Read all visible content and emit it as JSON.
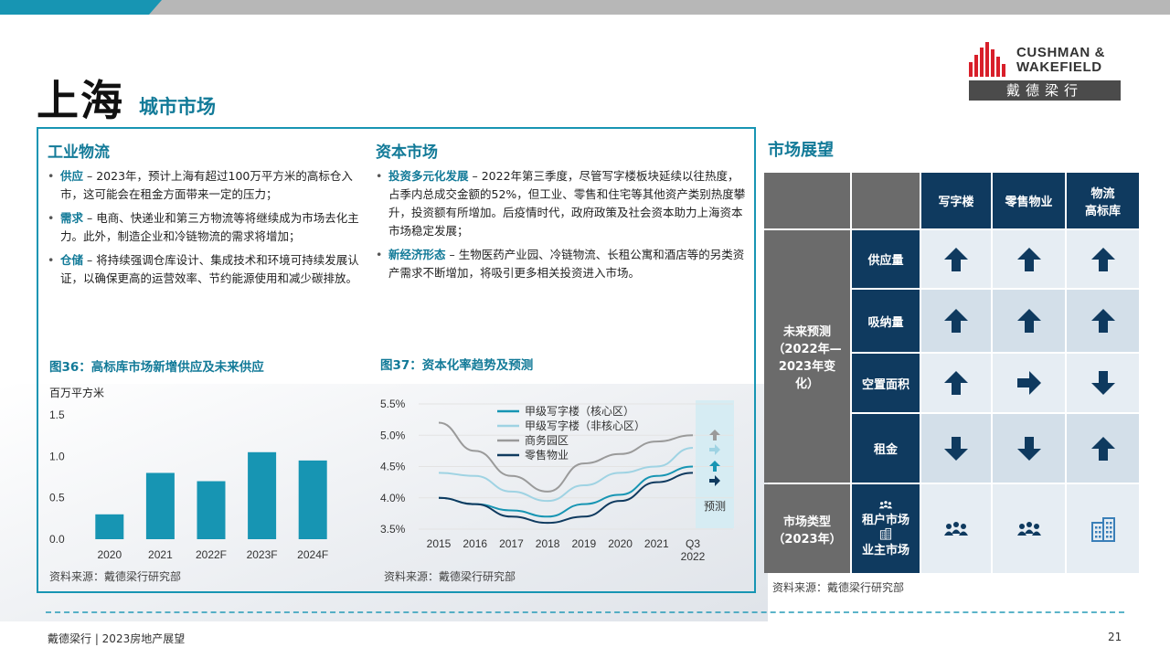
{
  "title": {
    "main": "上海",
    "sub": "城市市场"
  },
  "logo": {
    "line1": "CUSHMAN &",
    "line2": "WAKEFIELD",
    "chinese": "戴德梁行"
  },
  "industrial": {
    "heading": "工业物流",
    "items": [
      {
        "kw": "供应",
        "text": " – 2023年，预计上海有超过100万平方米的高标仓入市，这可能会在租金方面带来一定的压力；"
      },
      {
        "kw": "需求",
        "text": " – 电商、快递业和第三方物流等将继续成为市场去化主力。此外，制造企业和冷链物流的需求将增加；"
      },
      {
        "kw": "仓储",
        "text": " – 将持续强调仓库设计、集成技术和环境可持续发展认证，以确保更高的运营效率、节约能源使用和减少碳排放。"
      }
    ]
  },
  "capital": {
    "heading": "资本市场",
    "items": [
      {
        "kw": "投资多元化发展",
        "text": " – 2022年第三季度，尽管写字楼板块延续以往热度，占季内总成交金额的52%，但工业、零售和住宅等其他资产类别热度攀升，投资额有所增加。后疫情时代，政府政策及社会资本助力上海资本市场稳定发展；"
      },
      {
        "kw": "新经济形态",
        "text": " – 生物医药产业园、冷链物流、长租公寓和酒店等的另类资产需求不断增加，将吸引更多相关投资进入市场。"
      }
    ]
  },
  "fig36": {
    "title": "图36：高标库市场新增供应及未来供应",
    "unit": "百万平方米",
    "source": "资料来源：戴德梁行研究部"
  },
  "fig37": {
    "title": "图37：资本化率趋势及预测",
    "source": "资料来源：戴德梁行研究部",
    "forecast_label": "预测"
  },
  "chart_data": [
    {
      "type": "bar",
      "title": "图36：高标库市场新增供应及未来供应",
      "ylabel": "百万平方米",
      "categories": [
        "2020",
        "2021",
        "2022F",
        "2023F",
        "2024F"
      ],
      "values": [
        0.3,
        0.8,
        0.7,
        1.05,
        0.95
      ],
      "ylim": [
        0,
        1.5
      ],
      "yticks": [
        "0.0",
        "0.5",
        "1.0",
        "1.5"
      ],
      "color": "#1795b3"
    },
    {
      "type": "line",
      "title": "图37：资本化率趋势及预测",
      "x_labels": [
        "2015",
        "2016",
        "2017",
        "2018",
        "2019",
        "2020",
        "2021",
        "Q3\n2022"
      ],
      "x": [
        2015,
        2016,
        2017,
        2018,
        2019,
        2020,
        2021,
        2022
      ],
      "ylim": [
        3.5,
        5.5
      ],
      "yticks": [
        "3.5%",
        "4.0%",
        "4.5%",
        "5.0%",
        "5.5%"
      ],
      "legend_position": "top-left",
      "series": [
        {
          "name": "甲级写字楼（核心区）",
          "color": "#1795b3",
          "values": [
            4.0,
            3.9,
            3.8,
            3.7,
            3.9,
            4.05,
            4.35,
            4.5
          ]
        },
        {
          "name": "甲级写字楼（非核心区）",
          "color": "#9fd3e3",
          "values": [
            4.4,
            4.35,
            4.1,
            3.95,
            4.2,
            4.4,
            4.5,
            4.8
          ]
        },
        {
          "name": "商务园区",
          "color": "#9a9a9a",
          "values": [
            5.2,
            4.75,
            4.35,
            4.1,
            4.55,
            4.7,
            4.9,
            5.0
          ]
        },
        {
          "name": "零售物业",
          "color": "#0f3a5f",
          "values": [
            4.0,
            3.9,
            3.7,
            3.6,
            3.7,
            3.95,
            4.25,
            4.4
          ]
        }
      ],
      "forecast_arrows": [
        {
          "series": "商务园区",
          "direction": "up"
        },
        {
          "series": "甲级写字楼（非核心区）",
          "direction": "right"
        },
        {
          "series": "甲级写字楼（核心区）",
          "direction": "up"
        },
        {
          "series": "零售物业",
          "direction": "right"
        }
      ]
    }
  ],
  "outlook": {
    "title": "市场展望",
    "columns": [
      "写字楼",
      "零售物业",
      "物流\n高标库"
    ],
    "forecast_label": "未来预测\n（2022年—\n2023年变\n化）",
    "rows": [
      {
        "label": "供应量",
        "arrows": [
          "up",
          "up",
          "up"
        ]
      },
      {
        "label": "吸纳量",
        "arrows": [
          "up",
          "up",
          "up"
        ]
      },
      {
        "label": "空置面积",
        "arrows": [
          "up",
          "right",
          "down"
        ]
      },
      {
        "label": "租金",
        "arrows": [
          "down",
          "down",
          "up"
        ]
      }
    ],
    "market_type_label": "市场类型\n（2023年）",
    "market_type_legend": {
      "tenant": "租户市场",
      "landlord": "业主市场"
    },
    "market_type_values": [
      "tenant",
      "tenant",
      "landlord"
    ],
    "source": "资料来源：戴德梁行研究部"
  },
  "footer": {
    "left": "戴德梁行 | 2023房地产展望",
    "page": "21"
  }
}
